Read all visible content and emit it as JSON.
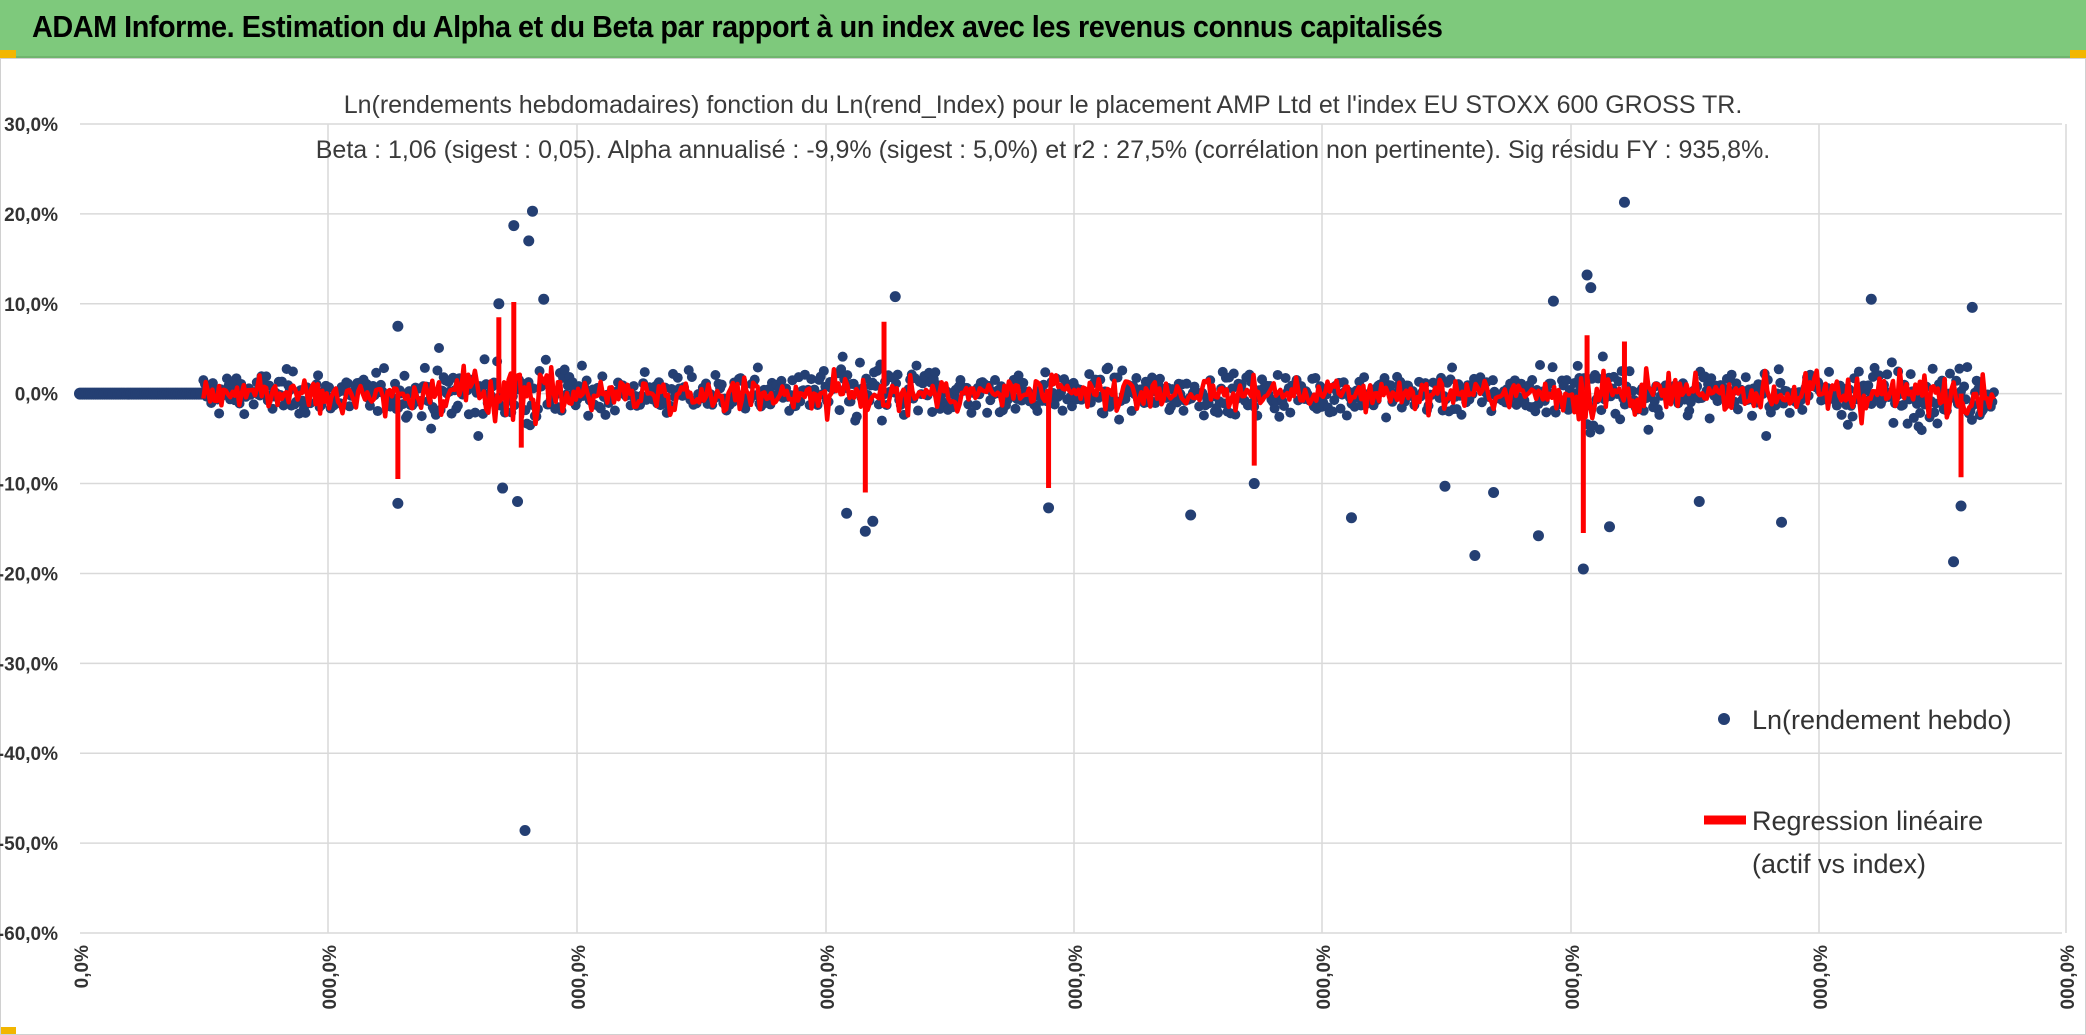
{
  "header": {
    "title": "ADAM Informe. Estimation du Alpha et du Beta par rapport à un index avec les revenus connus capitalisés"
  },
  "chart_data": {
    "type": "scatter",
    "title": "Ln(rendements hebdomadaires) fonction du Ln(rend_Index) pour le placement AMP Ltd et l'index EU STOXX 600 GROSS TR.",
    "subtitle": "Beta : 1,06 (sigest : 0,05). Alpha annualisé : -9,9% (sigest : 5,0%) et r2 : 27,5% (corrélation non pertinente). Sig résidu FY : 935,8%.",
    "y_ticks": [
      "30,0%",
      "20,0%",
      "10,0%",
      "0,0%",
      "-10,0%",
      "-20,0%",
      "-30,0%",
      "-40,0%",
      "-50,0%",
      "-60,0%"
    ],
    "x_ticks": [
      "0,0%",
      "000,0%",
      "000,0%",
      "000,0%",
      "000,0%",
      "000,0%",
      "000,0%",
      "000,0%",
      "000,0%"
    ],
    "ylim": [
      -60,
      30
    ],
    "grid": true,
    "legend_position": "right",
    "series": [
      {
        "name": "Ln(rendement hebdo)",
        "color": "#243f73",
        "kind": "scatter"
      },
      {
        "name_line1": "Regression linéaire",
        "name_line2": "(actif vs index)",
        "color": "#ff0000",
        "kind": "line"
      }
    ],
    "outliers": [
      {
        "x": 8.5,
        "y": 7.5
      },
      {
        "x": 8.5,
        "y": -12.2
      },
      {
        "x": 11.2,
        "y": 10.0
      },
      {
        "x": 11.3,
        "y": -10.5
      },
      {
        "x": 11.6,
        "y": 18.7
      },
      {
        "x": 11.7,
        "y": -12.0
      },
      {
        "x": 12.0,
        "y": 17.0
      },
      {
        "x": 12.1,
        "y": 20.3
      },
      {
        "x": 12.4,
        "y": 10.5
      },
      {
        "x": 11.9,
        "y": -48.6
      },
      {
        "x": 20.5,
        "y": -13.3
      },
      {
        "x": 21.0,
        "y": -15.3
      },
      {
        "x": 21.2,
        "y": -14.2
      },
      {
        "x": 21.8,
        "y": 10.8
      },
      {
        "x": 25.9,
        "y": -12.7
      },
      {
        "x": 29.7,
        "y": -13.5
      },
      {
        "x": 31.4,
        "y": -10.0
      },
      {
        "x": 34.0,
        "y": -13.8
      },
      {
        "x": 36.5,
        "y": -10.3
      },
      {
        "x": 37.3,
        "y": -18.0
      },
      {
        "x": 37.8,
        "y": -11.0
      },
      {
        "x": 39.0,
        "y": -15.8
      },
      {
        "x": 39.4,
        "y": 10.3
      },
      {
        "x": 40.2,
        "y": -19.5
      },
      {
        "x": 40.3,
        "y": 13.2
      },
      {
        "x": 40.4,
        "y": 11.8
      },
      {
        "x": 40.9,
        "y": -14.8
      },
      {
        "x": 41.3,
        "y": 21.3
      },
      {
        "x": 43.3,
        "y": -12.0
      },
      {
        "x": 45.5,
        "y": -14.3
      },
      {
        "x": 47.9,
        "y": 10.5
      },
      {
        "x": 50.1,
        "y": -18.7
      },
      {
        "x": 50.3,
        "y": -12.5
      },
      {
        "x": 50.6,
        "y": 9.6
      }
    ]
  },
  "legend": {
    "scatter_label": "Ln(rendement hebdo)",
    "line_label_1": "Regression linéaire",
    "line_label_2": "(actif vs index)"
  }
}
